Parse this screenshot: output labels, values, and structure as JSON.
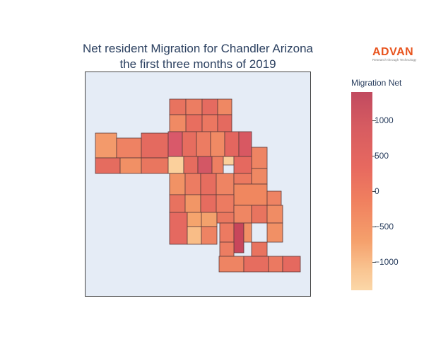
{
  "title": {
    "line1": "Net resident Migration for Chandler Arizona",
    "line2": "the first three months of 2019"
  },
  "logo": {
    "word": "ADVAN",
    "tagline": "Research through Technology",
    "color": "#e8541e"
  },
  "colorbar": {
    "title": "Migration Net",
    "ticks": [
      "1000",
      "500",
      "0",
      "−500",
      "−1000"
    ],
    "colors": [
      "#c14a5f",
      "#d75c61",
      "#e7695f",
      "#f0805f",
      "#f5a06c",
      "#f9c592",
      "#fbd7a8"
    ],
    "range": [
      -1400,
      1400
    ]
  },
  "map": {
    "background": "#e5ecf6",
    "border": "#444444"
  }
}
